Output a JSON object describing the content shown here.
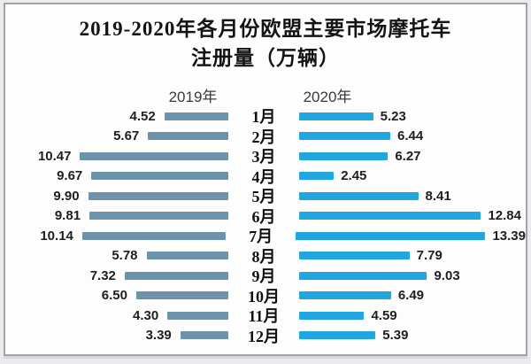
{
  "title": {
    "line1": "2019-2020年各月份欧盟主要市场摩托车",
    "line2": "注册量（万辆）"
  },
  "chart_data": {
    "type": "bar",
    "orientation": "horizontal-bilateral",
    "title": "2019-2020年各月份欧盟主要市场摩托车注册量（万辆）",
    "categories": [
      "1月",
      "2月",
      "3月",
      "4月",
      "5月",
      "6月",
      "7月",
      "8月",
      "9月",
      "10月",
      "11月",
      "12月"
    ],
    "series": [
      {
        "name": "2019年",
        "color": "#6d93ab",
        "values": [
          4.52,
          5.67,
          10.47,
          9.67,
          9.9,
          9.81,
          10.14,
          5.78,
          7.32,
          6.5,
          4.3,
          3.39
        ]
      },
      {
        "name": "2020年",
        "color": "#21a7e0",
        "values": [
          5.23,
          6.44,
          6.27,
          2.45,
          8.41,
          12.84,
          13.39,
          7.79,
          9.03,
          6.49,
          4.59,
          5.39
        ]
      }
    ],
    "value_labels_decimals": 2,
    "xlim": [
      0,
      14
    ],
    "grid": false,
    "legend_position": "column-headers-top"
  }
}
